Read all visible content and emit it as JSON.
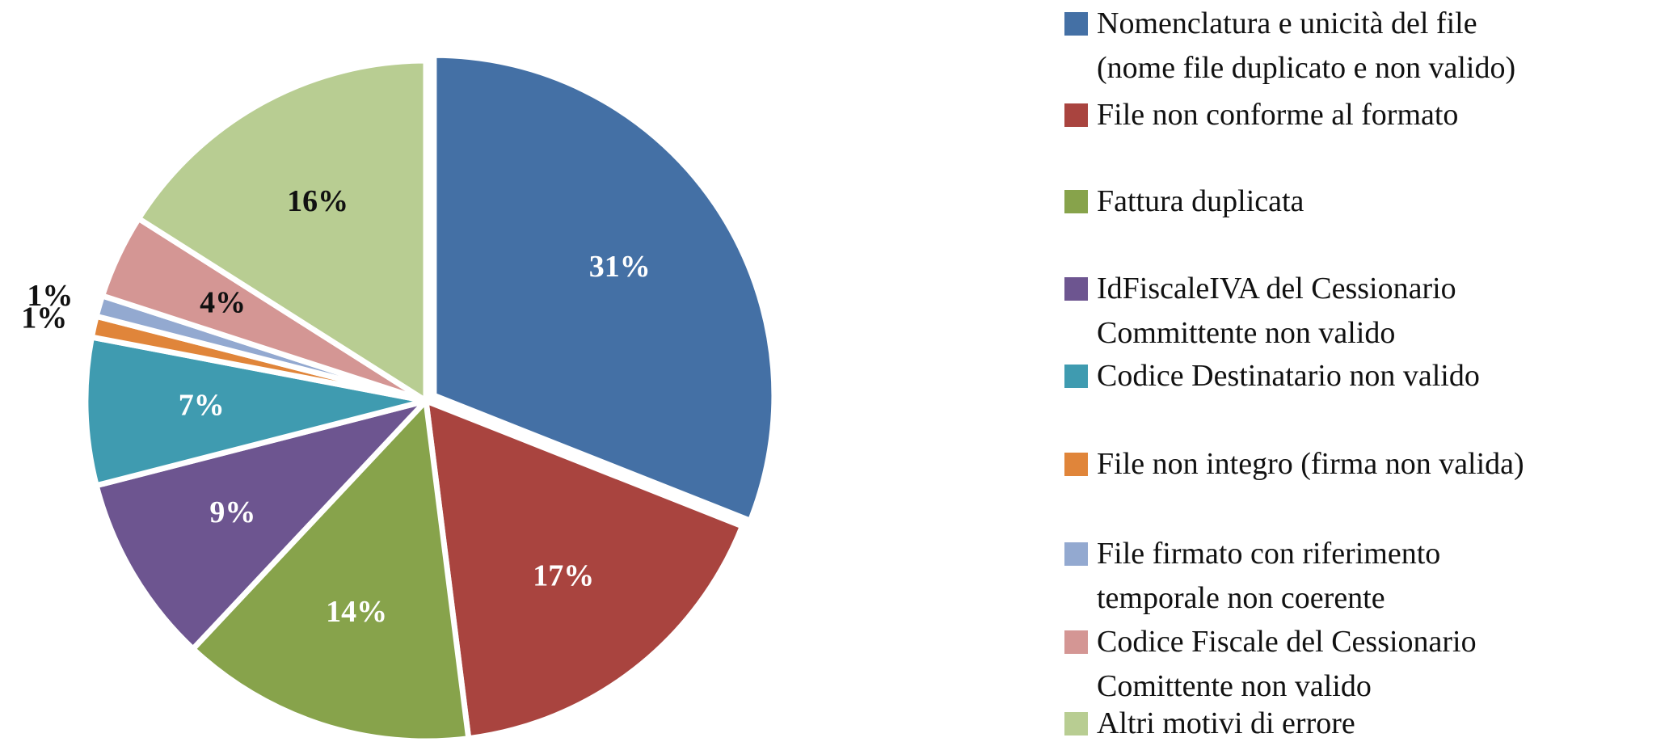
{
  "chart_data": {
    "type": "pie",
    "categories": [
      "Nomenclatura e unicità del file\n(nome file duplicato e non valido)",
      "File non conforme al formato",
      "Fattura duplicata",
      "IdFiscaleIVA del Cessionario\nCommittente non valido",
      "Codice Destinatario non valido",
      "File non integro (firma non valida)",
      "File firmato con riferimento\ntemporale non coerente",
      "Codice Fiscale del Cessionario\nComittente non valido",
      "Altri motivi di errore"
    ],
    "values": [
      31,
      17,
      14,
      9,
      7,
      1,
      1,
      4,
      16
    ],
    "value_labels": [
      "31%",
      "17%",
      "14%",
      "9%",
      "7%",
      "1%",
      "1%",
      "4%",
      "16%"
    ],
    "colors": [
      "#4470a5",
      "#a9443f",
      "#87a34b",
      "#6d5590",
      "#3f9bb0",
      "#e0853a",
      "#93a9d0",
      "#d49694",
      "#b8cd92"
    ],
    "legend": "right"
  }
}
